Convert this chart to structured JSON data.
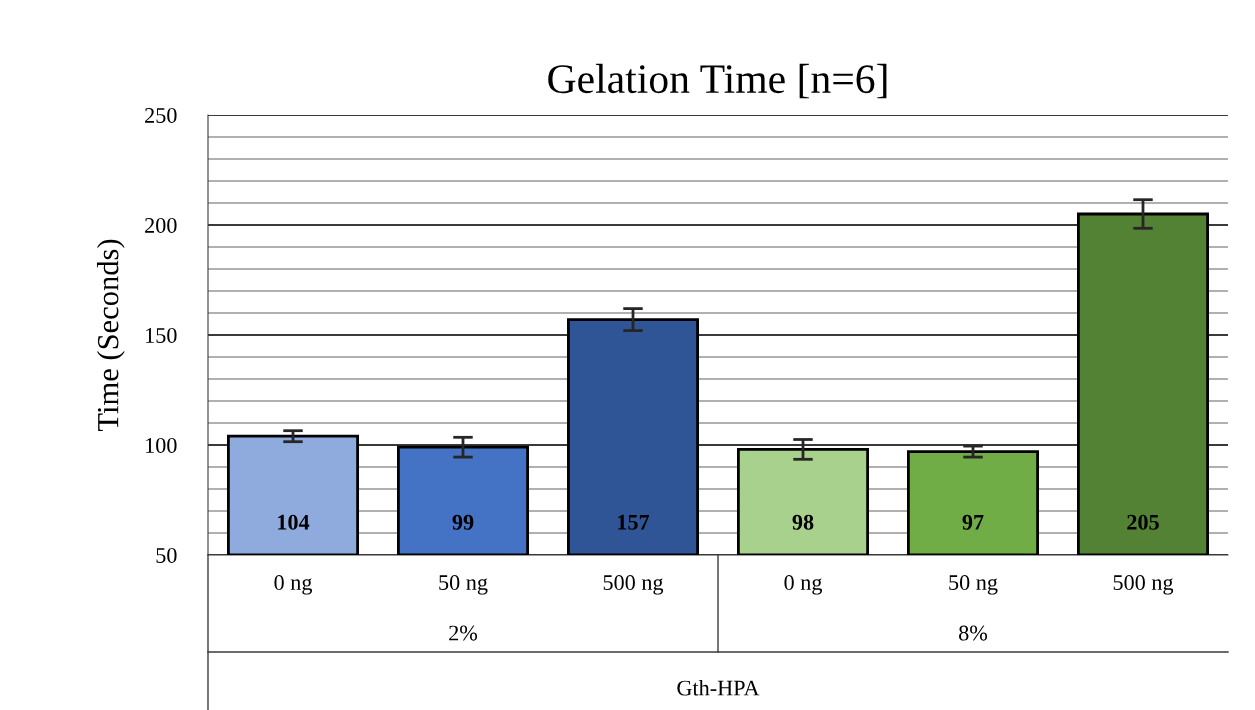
{
  "chart_data": {
    "type": "bar",
    "title": "Gelation Time [n=6]",
    "ylabel": "Time (Seconds)",
    "categories": [
      "0 ng",
      "50 ng",
      "500 ng",
      "0 ng",
      "50 ng",
      "500 ng"
    ],
    "values": [
      104,
      99,
      157,
      98,
      97,
      205
    ],
    "errors": [
      2.5,
      4.5,
      5,
      4.5,
      2.5,
      6.5
    ],
    "colors": [
      "#8faadc",
      "#4472c4",
      "#2f5597",
      "#a9d18e",
      "#70ad47",
      "#548235"
    ],
    "data_labels": true,
    "annotations": [
      "2%",
      "8%",
      "Gth-HPA"
    ],
    "ylim": [
      50,
      250
    ],
    "yticks": [
      50,
      {
        "value": 60,
        "label": null
      },
      {
        "value": 70,
        "label": null
      },
      {
        "value": 80,
        "label": null
      },
      {
        "value": 90,
        "label": null
      },
      100,
      {
        "value": 110,
        "label": null
      },
      {
        "value": 120,
        "label": null
      },
      {
        "value": 130,
        "label": null
      },
      {
        "value": 140,
        "label": null
      },
      150,
      {
        "value": 160,
        "label": null
      },
      {
        "value": 170,
        "label": null
      },
      {
        "value": 180,
        "label": null
      },
      {
        "value": 190,
        "label": null
      },
      200,
      {
        "value": 210,
        "label": null
      },
      {
        "value": 220,
        "label": null
      },
      {
        "value": 230,
        "label": null
      },
      {
        "value": 240,
        "label": null
      },
      250
    ],
    "grid": "y"
  }
}
